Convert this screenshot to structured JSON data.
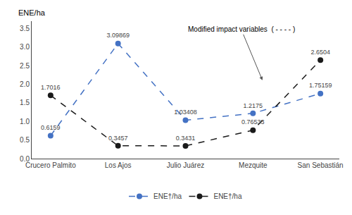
{
  "chart_data": {
    "type": "line",
    "ylabel": "ENE/ha",
    "annotations": [
      "Modified impact variables  ( - - - - )"
    ],
    "categories": [
      "Crucero Palmito",
      "Los Ajos",
      "Julio Juárez",
      "Mezquite",
      "San Sebastián"
    ],
    "series": [
      {
        "name": "ENE†/ha",
        "color": "#4472C4",
        "values": [
          0.6159,
          3.09869,
          1.03408,
          1.2175,
          1.75159
        ],
        "line_style": "dashed",
        "marker": "circle"
      },
      {
        "name": "ENE†/ha",
        "color": "#1a1a1a",
        "values": [
          1.7016,
          0.3457,
          0.3431,
          0.76533,
          2.6504
        ],
        "line_style": "dashed",
        "marker": "circle"
      }
    ],
    "ylim": [
      0,
      3.7
    ],
    "yticks": [
      {
        "value": 0,
        "label": "0.0"
      },
      0.5,
      {
        "value": 1,
        "label": "1.0"
      },
      1.5,
      {
        "value": 2,
        "label": "2.0"
      },
      2.5,
      {
        "value": 3,
        "label": "3.0"
      },
      3.5
    ],
    "grid": false,
    "data_labels": true,
    "legend": "bottom"
  }
}
